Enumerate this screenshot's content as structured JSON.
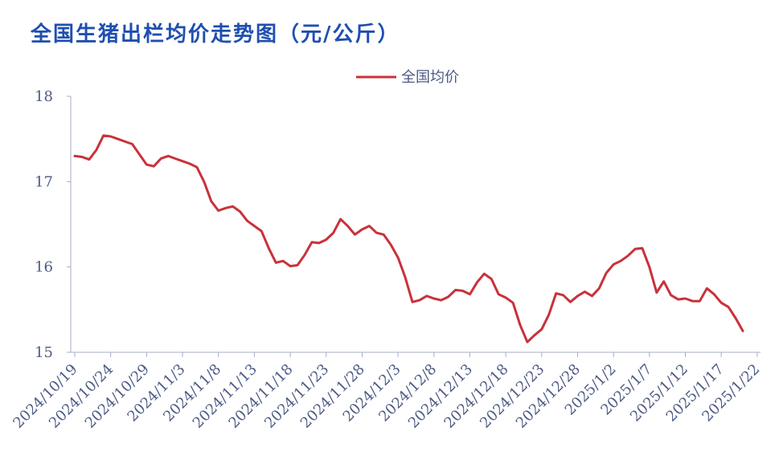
{
  "title": "全国生猪出栏均价走势图（元/公斤）",
  "colors": {
    "title": "#1f4fb0",
    "line": "#c8323a",
    "axis": "#a6acc4",
    "tick_text": "#4e5a84"
  },
  "chart_data": {
    "type": "line",
    "title": "全国生猪出栏均价走势图（元/公斤）",
    "xlabel": "",
    "ylabel": "",
    "ylim": [
      15,
      18
    ],
    "yticks": [
      15,
      16,
      17,
      18
    ],
    "grid": false,
    "legend": "top-center",
    "x_tick_labels": [
      "2024/10/19",
      "2024/10/24",
      "2024/10/29",
      "2024/11/3",
      "2024/11/8",
      "2024/11/13",
      "2024/11/18",
      "2024/11/23",
      "2024/11/28",
      "2024/12/3",
      "2024/12/8",
      "2024/12/13",
      "2024/12/18",
      "2024/12/23",
      "2024/12/28",
      "2025/1/2",
      "2025/1/7",
      "2025/1/12",
      "2025/1/17",
      "2025/1/22"
    ],
    "series": [
      {
        "name": "全国均价",
        "start_date": "2024/10/19",
        "values": [
          17.3,
          17.29,
          17.26,
          17.37,
          17.54,
          17.53,
          17.5,
          17.47,
          17.44,
          17.32,
          17.2,
          17.18,
          17.27,
          17.3,
          17.27,
          17.24,
          17.21,
          17.17,
          17.0,
          16.77,
          16.66,
          16.69,
          16.71,
          16.65,
          16.54,
          16.48,
          16.42,
          16.22,
          16.05,
          16.07,
          16.01,
          16.02,
          16.14,
          16.29,
          16.28,
          16.32,
          16.4,
          16.56,
          16.48,
          16.38,
          16.44,
          16.48,
          16.4,
          16.38,
          16.26,
          16.11,
          15.88,
          15.59,
          15.61,
          15.66,
          15.63,
          15.61,
          15.65,
          15.73,
          15.72,
          15.68,
          15.82,
          15.92,
          15.86,
          15.68,
          15.64,
          15.58,
          15.32,
          15.12,
          15.2,
          15.27,
          15.44,
          15.69,
          15.67,
          15.59,
          15.66,
          15.71,
          15.66,
          15.75,
          15.93,
          16.03,
          16.07,
          16.13,
          16.21,
          16.22,
          16.0,
          15.7,
          15.83,
          15.67,
          15.62,
          15.63,
          15.6,
          15.6,
          15.75,
          15.68,
          15.58,
          15.53,
          15.4,
          15.25
        ]
      }
    ]
  }
}
